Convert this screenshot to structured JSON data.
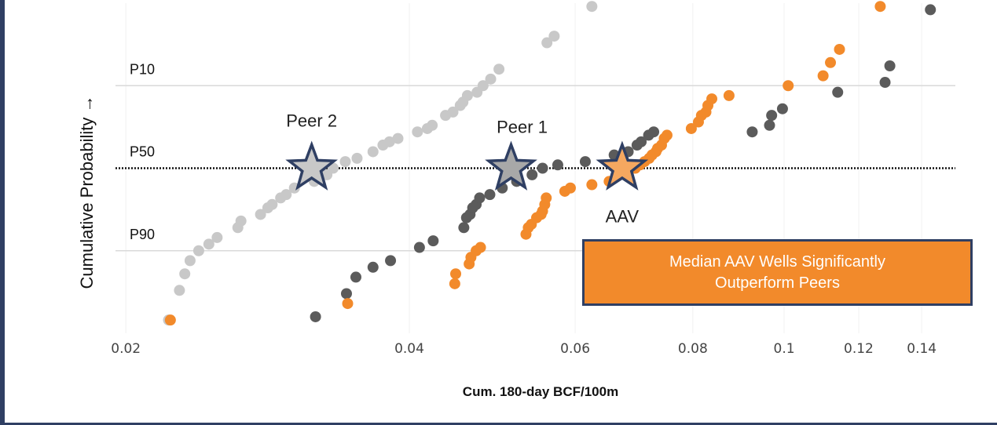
{
  "chart_data": {
    "type": "scatter",
    "title": "",
    "xlabel": "Cum. 180-day BCF/100m",
    "ylabel": "Cumulative Probability →",
    "x_scale": "log",
    "xlim": [
      0.0195,
      0.152
    ],
    "ylim": [
      0.0,
      1.0
    ],
    "x_ticks": [
      0.02,
      0.04,
      0.06,
      0.08,
      0.1,
      0.12,
      0.14
    ],
    "x_tick_labels": [
      "0.02",
      "0.04",
      "0.06",
      "0.08",
      "0.1",
      "0.12",
      "0.14"
    ],
    "grid": "horizontal at P10, P90",
    "levels": [
      {
        "label": "P10",
        "y": 0.75
      },
      {
        "label": "P50",
        "y": 0.5
      },
      {
        "label": "P90",
        "y": 0.25
      }
    ],
    "series": [
      {
        "color": "#c8c8c8",
        "points": [
          [
            0.0222,
            0.04
          ],
          [
            0.0228,
            0.13
          ],
          [
            0.0231,
            0.18
          ],
          [
            0.0234,
            0.22
          ],
          [
            0.0239,
            0.25
          ],
          [
            0.0245,
            0.27
          ],
          [
            0.025,
            0.29
          ],
          [
            0.0263,
            0.32
          ],
          [
            0.0265,
            0.34
          ],
          [
            0.0278,
            0.36
          ],
          [
            0.0283,
            0.38
          ],
          [
            0.0286,
            0.39
          ],
          [
            0.0292,
            0.41
          ],
          [
            0.0296,
            0.42
          ],
          [
            0.0302,
            0.44
          ],
          [
            0.0317,
            0.46
          ],
          [
            0.032,
            0.47
          ],
          [
            0.0327,
            0.48
          ],
          [
            0.0332,
            0.5
          ],
          [
            0.0342,
            0.52
          ],
          [
            0.0352,
            0.53
          ],
          [
            0.0366,
            0.55
          ],
          [
            0.0375,
            0.57
          ],
          [
            0.0381,
            0.58
          ],
          [
            0.0389,
            0.59
          ],
          [
            0.0408,
            0.61
          ],
          [
            0.0418,
            0.62
          ],
          [
            0.0423,
            0.63
          ],
          [
            0.0437,
            0.66
          ],
          [
            0.0445,
            0.67
          ],
          [
            0.0453,
            0.69
          ],
          [
            0.0456,
            0.7
          ],
          [
            0.0461,
            0.72
          ],
          [
            0.0472,
            0.73
          ],
          [
            0.0479,
            0.75
          ],
          [
            0.0488,
            0.77
          ],
          [
            0.0498,
            0.8
          ],
          [
            0.056,
            0.88
          ],
          [
            0.057,
            0.9
          ],
          [
            0.0625,
            0.99
          ]
        ]
      },
      {
        "color": "#5b5b5b",
        "points": [
          [
            0.0318,
            0.05
          ],
          [
            0.0343,
            0.12
          ],
          [
            0.0351,
            0.17
          ],
          [
            0.0366,
            0.2
          ],
          [
            0.0382,
            0.22
          ],
          [
            0.041,
            0.26
          ],
          [
            0.0424,
            0.28
          ],
          [
            0.0457,
            0.32
          ],
          [
            0.046,
            0.35
          ],
          [
            0.0464,
            0.36
          ],
          [
            0.0467,
            0.38
          ],
          [
            0.0471,
            0.39
          ],
          [
            0.0475,
            0.41
          ],
          [
            0.0487,
            0.42
          ],
          [
            0.0502,
            0.44
          ],
          [
            0.052,
            0.46
          ],
          [
            0.054,
            0.48
          ],
          [
            0.0554,
            0.5
          ],
          [
            0.0575,
            0.51
          ],
          [
            0.0615,
            0.52
          ],
          [
            0.066,
            0.54
          ],
          [
            0.0683,
            0.55
          ],
          [
            0.0698,
            0.57
          ],
          [
            0.0705,
            0.58
          ],
          [
            0.0718,
            0.6
          ],
          [
            0.0727,
            0.61
          ],
          [
            0.0925,
            0.61
          ],
          [
            0.0965,
            0.63
          ],
          [
            0.097,
            0.66
          ],
          [
            0.0996,
            0.68
          ],
          [
            0.114,
            0.73
          ],
          [
            0.128,
            0.76
          ],
          [
            0.1295,
            0.81
          ],
          [
            0.143,
            0.98
          ]
        ]
      },
      {
        "color": "#f28a2b",
        "points": [
          [
            0.0223,
            0.04
          ],
          [
            0.0344,
            0.09
          ],
          [
            0.0447,
            0.15
          ],
          [
            0.0448,
            0.18
          ],
          [
            0.0463,
            0.21
          ],
          [
            0.0465,
            0.23
          ],
          [
            0.0471,
            0.25
          ],
          [
            0.0476,
            0.26
          ],
          [
            0.0532,
            0.3
          ],
          [
            0.0535,
            0.32
          ],
          [
            0.0539,
            0.33
          ],
          [
            0.0546,
            0.35
          ],
          [
            0.0552,
            0.36
          ],
          [
            0.0554,
            0.37
          ],
          [
            0.0557,
            0.39
          ],
          [
            0.0559,
            0.41
          ],
          [
            0.0585,
            0.43
          ],
          [
            0.0593,
            0.44
          ],
          [
            0.0625,
            0.45
          ],
          [
            0.0652,
            0.46
          ],
          [
            0.0664,
            0.48
          ],
          [
            0.068,
            0.49
          ],
          [
            0.0695,
            0.5
          ],
          [
            0.0703,
            0.51
          ],
          [
            0.0711,
            0.52
          ],
          [
            0.0719,
            0.53
          ],
          [
            0.0724,
            0.54
          ],
          [
            0.0731,
            0.55
          ],
          [
            0.0734,
            0.56
          ],
          [
            0.0741,
            0.57
          ],
          [
            0.0746,
            0.59
          ],
          [
            0.0751,
            0.6
          ],
          [
            0.0797,
            0.62
          ],
          [
            0.0811,
            0.64
          ],
          [
            0.0817,
            0.66
          ],
          [
            0.0826,
            0.67
          ],
          [
            0.083,
            0.69
          ],
          [
            0.0838,
            0.71
          ],
          [
            0.0874,
            0.72
          ],
          [
            0.101,
            0.75
          ],
          [
            0.11,
            0.78
          ],
          [
            0.112,
            0.82
          ],
          [
            0.1145,
            0.86
          ],
          [
            0.1265,
            0.99
          ]
        ]
      }
    ],
    "stars": [
      {
        "label": "Peer 2",
        "x": 0.0315,
        "y": 0.5,
        "fill": "#c8c8c8"
      },
      {
        "label": "Peer 1",
        "x": 0.0513,
        "y": 0.5,
        "fill": "#a8a8a8"
      },
      {
        "label": "AAV",
        "x": 0.0673,
        "y": 0.5,
        "fill": "#f5a860"
      }
    ],
    "annotation": [
      "Median AAV Wells Significantly",
      "Outperform Peers"
    ]
  },
  "style": {
    "frame_color": "#2f3f63",
    "grid_color": "#d9d9d9",
    "star_stroke": "#2f3f63",
    "median_line_color": "#111111"
  }
}
